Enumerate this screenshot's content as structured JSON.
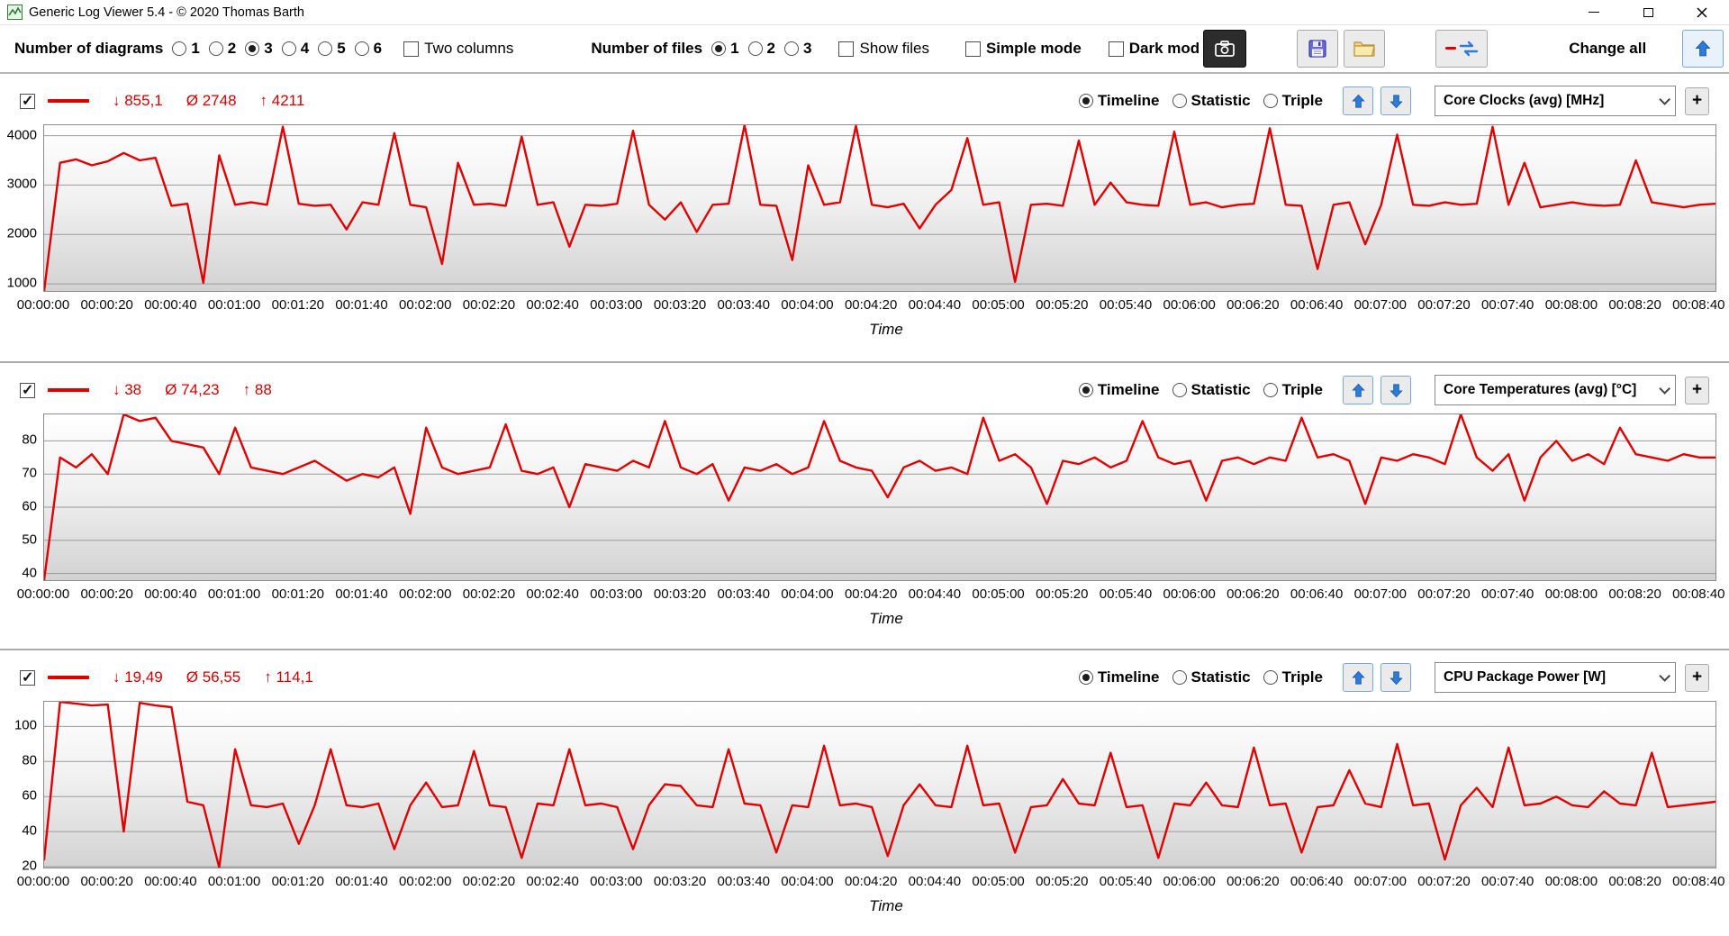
{
  "window": {
    "title": "Generic Log Viewer 5.4 - © 2020 Thomas Barth"
  },
  "toolbar": {
    "number_of_diagrams_label": "Number of diagrams",
    "diagram_options": [
      "1",
      "2",
      "3",
      "4",
      "5",
      "6"
    ],
    "diagrams_selected": "3",
    "two_columns_label": "Two columns",
    "two_columns_checked": false,
    "number_of_files_label": "Number of files",
    "file_options": [
      "1",
      "2",
      "3"
    ],
    "files_selected": "1",
    "show_files_label": "Show files",
    "show_files_checked": false,
    "simple_mode_label": "Simple mode",
    "simple_mode_checked": false,
    "dark_mode_label": "Dark mod",
    "dark_mode_checked": false,
    "change_all_label": "Change all",
    "icons": [
      "camera-icon",
      "save-icon",
      "open-folder-icon",
      "sync-icon",
      "up-arrow-icon",
      "down-arrow-icon"
    ]
  },
  "panel_labels": {
    "view_options": [
      "Timeline",
      "Statistic",
      "Triple"
    ],
    "view_selected": "Timeline",
    "add_button": "+"
  },
  "time_axis": {
    "tick_interval_s": 20,
    "label": "Time",
    "ticks": [
      "00:00:00",
      "00:00:20",
      "00:00:40",
      "00:01:00",
      "00:01:20",
      "00:01:40",
      "00:02:00",
      "00:02:20",
      "00:02:40",
      "00:03:00",
      "00:03:20",
      "00:03:40",
      "00:04:00",
      "00:04:20",
      "00:04:40",
      "00:05:00",
      "00:05:20",
      "00:05:40",
      "00:06:00",
      "00:06:20",
      "00:06:40",
      "00:07:00",
      "00:07:20",
      "00:07:40",
      "00:08:00",
      "00:08:20",
      "00:08:40"
    ]
  },
  "colors": {
    "series_red": "#e00000",
    "arrow_blue": "#2e7cd6",
    "stat_red": "#d40000"
  },
  "chart_data": [
    {
      "type": "line",
      "metric": "Core Clocks (avg) [MHz]",
      "visible": true,
      "series_color": "#e00000",
      "stats": {
        "min": "↓ 855,1",
        "avg": "Ø 2748",
        "max": "↑ 4211"
      },
      "ylim": [
        855.1,
        4211
      ],
      "yticks": [
        1000,
        2000,
        3000,
        4000
      ],
      "x_step_s": 5,
      "values": [
        855.1,
        3450,
        3520,
        3400,
        3480,
        3650,
        3500,
        3550,
        2580,
        2620,
        1020,
        3600,
        2600,
        2650,
        2600,
        4180,
        2620,
        2580,
        2600,
        2100,
        2650,
        2600,
        4050,
        2600,
        2550,
        1400,
        3450,
        2600,
        2620,
        2580,
        3980,
        2600,
        2650,
        1750,
        2600,
        2580,
        2620,
        4100,
        2600,
        2300,
        2650,
        2050,
        2600,
        2620,
        4211,
        2600,
        2580,
        1480,
        3400,
        2600,
        2650,
        4200,
        2600,
        2550,
        2620,
        2120,
        2600,
        2900,
        3950,
        2600,
        2650,
        1040,
        2600,
        2620,
        2580,
        3900,
        2600,
        3050,
        2650,
        2600,
        2580,
        4080,
        2600,
        2650,
        2550,
        2600,
        2620,
        4150,
        2600,
        2580,
        1300,
        2600,
        2650,
        1800,
        2600,
        4020,
        2600,
        2580,
        2650,
        2600,
        2620,
        4180,
        2600,
        3450,
        2550,
        2600,
        2650,
        2600,
        2580,
        2600,
        3500,
        2650,
        2600,
        2550,
        2600,
        2620
      ]
    },
    {
      "type": "line",
      "metric": "Core Temperatures (avg) [°C]",
      "visible": true,
      "series_color": "#e00000",
      "stats": {
        "min": "↓ 38",
        "avg": "Ø 74,23",
        "max": "↑ 88"
      },
      "ylim": [
        38,
        88
      ],
      "yticks": [
        40,
        50,
        60,
        70,
        80
      ],
      "x_step_s": 5,
      "values": [
        38,
        75,
        72,
        76,
        70,
        88,
        86,
        87,
        80,
        79,
        78,
        70,
        84,
        72,
        71,
        70,
        72,
        74,
        71,
        68,
        70,
        69,
        72,
        58,
        84,
        72,
        70,
        71,
        72,
        85,
        71,
        70,
        72,
        60,
        73,
        72,
        71,
        74,
        72,
        86,
        72,
        70,
        73,
        62,
        72,
        71,
        73,
        70,
        72,
        86,
        74,
        72,
        71,
        63,
        72,
        74,
        71,
        72,
        70,
        87,
        74,
        76,
        72,
        61,
        74,
        73,
        75,
        72,
        74,
        86,
        75,
        73,
        74,
        62,
        74,
        75,
        73,
        75,
        74,
        87,
        75,
        76,
        74,
        61,
        75,
        74,
        76,
        75,
        73,
        88,
        75,
        71,
        76,
        62,
        75,
        80,
        74,
        76,
        73,
        84,
        76,
        75,
        74,
        76,
        75,
        75
      ]
    },
    {
      "type": "line",
      "metric": "CPU Package Power [W]",
      "visible": true,
      "series_color": "#e00000",
      "stats": {
        "min": "↓ 19,49",
        "avg": "Ø 56,55",
        "max": "↑ 114,1"
      },
      "ylim": [
        19.49,
        114.1
      ],
      "yticks": [
        20,
        40,
        60,
        80,
        100
      ],
      "x_step_s": 5,
      "values": [
        24,
        114.1,
        113,
        112,
        112.5,
        40,
        113.5,
        112,
        111,
        57,
        55,
        19.5,
        87,
        55,
        54,
        56,
        33,
        55,
        87,
        55,
        54,
        56,
        30,
        55,
        68,
        54,
        55,
        86,
        55,
        54,
        25,
        56,
        55,
        87,
        55,
        56,
        54,
        30,
        55,
        67,
        66,
        55,
        54,
        87,
        56,
        55,
        28,
        55,
        54,
        89,
        55,
        56,
        54,
        26,
        55,
        67,
        55,
        54,
        89,
        55,
        56,
        28,
        54,
        55,
        70,
        56,
        55,
        85,
        54,
        55,
        25,
        56,
        55,
        68,
        55,
        54,
        88,
        55,
        56,
        28,
        54,
        55,
        75,
        56,
        54,
        90,
        55,
        56,
        24,
        55,
        65,
        54,
        88,
        55,
        56,
        60,
        55,
        54,
        63,
        56,
        55,
        85,
        54,
        55,
        56,
        57
      ]
    }
  ]
}
